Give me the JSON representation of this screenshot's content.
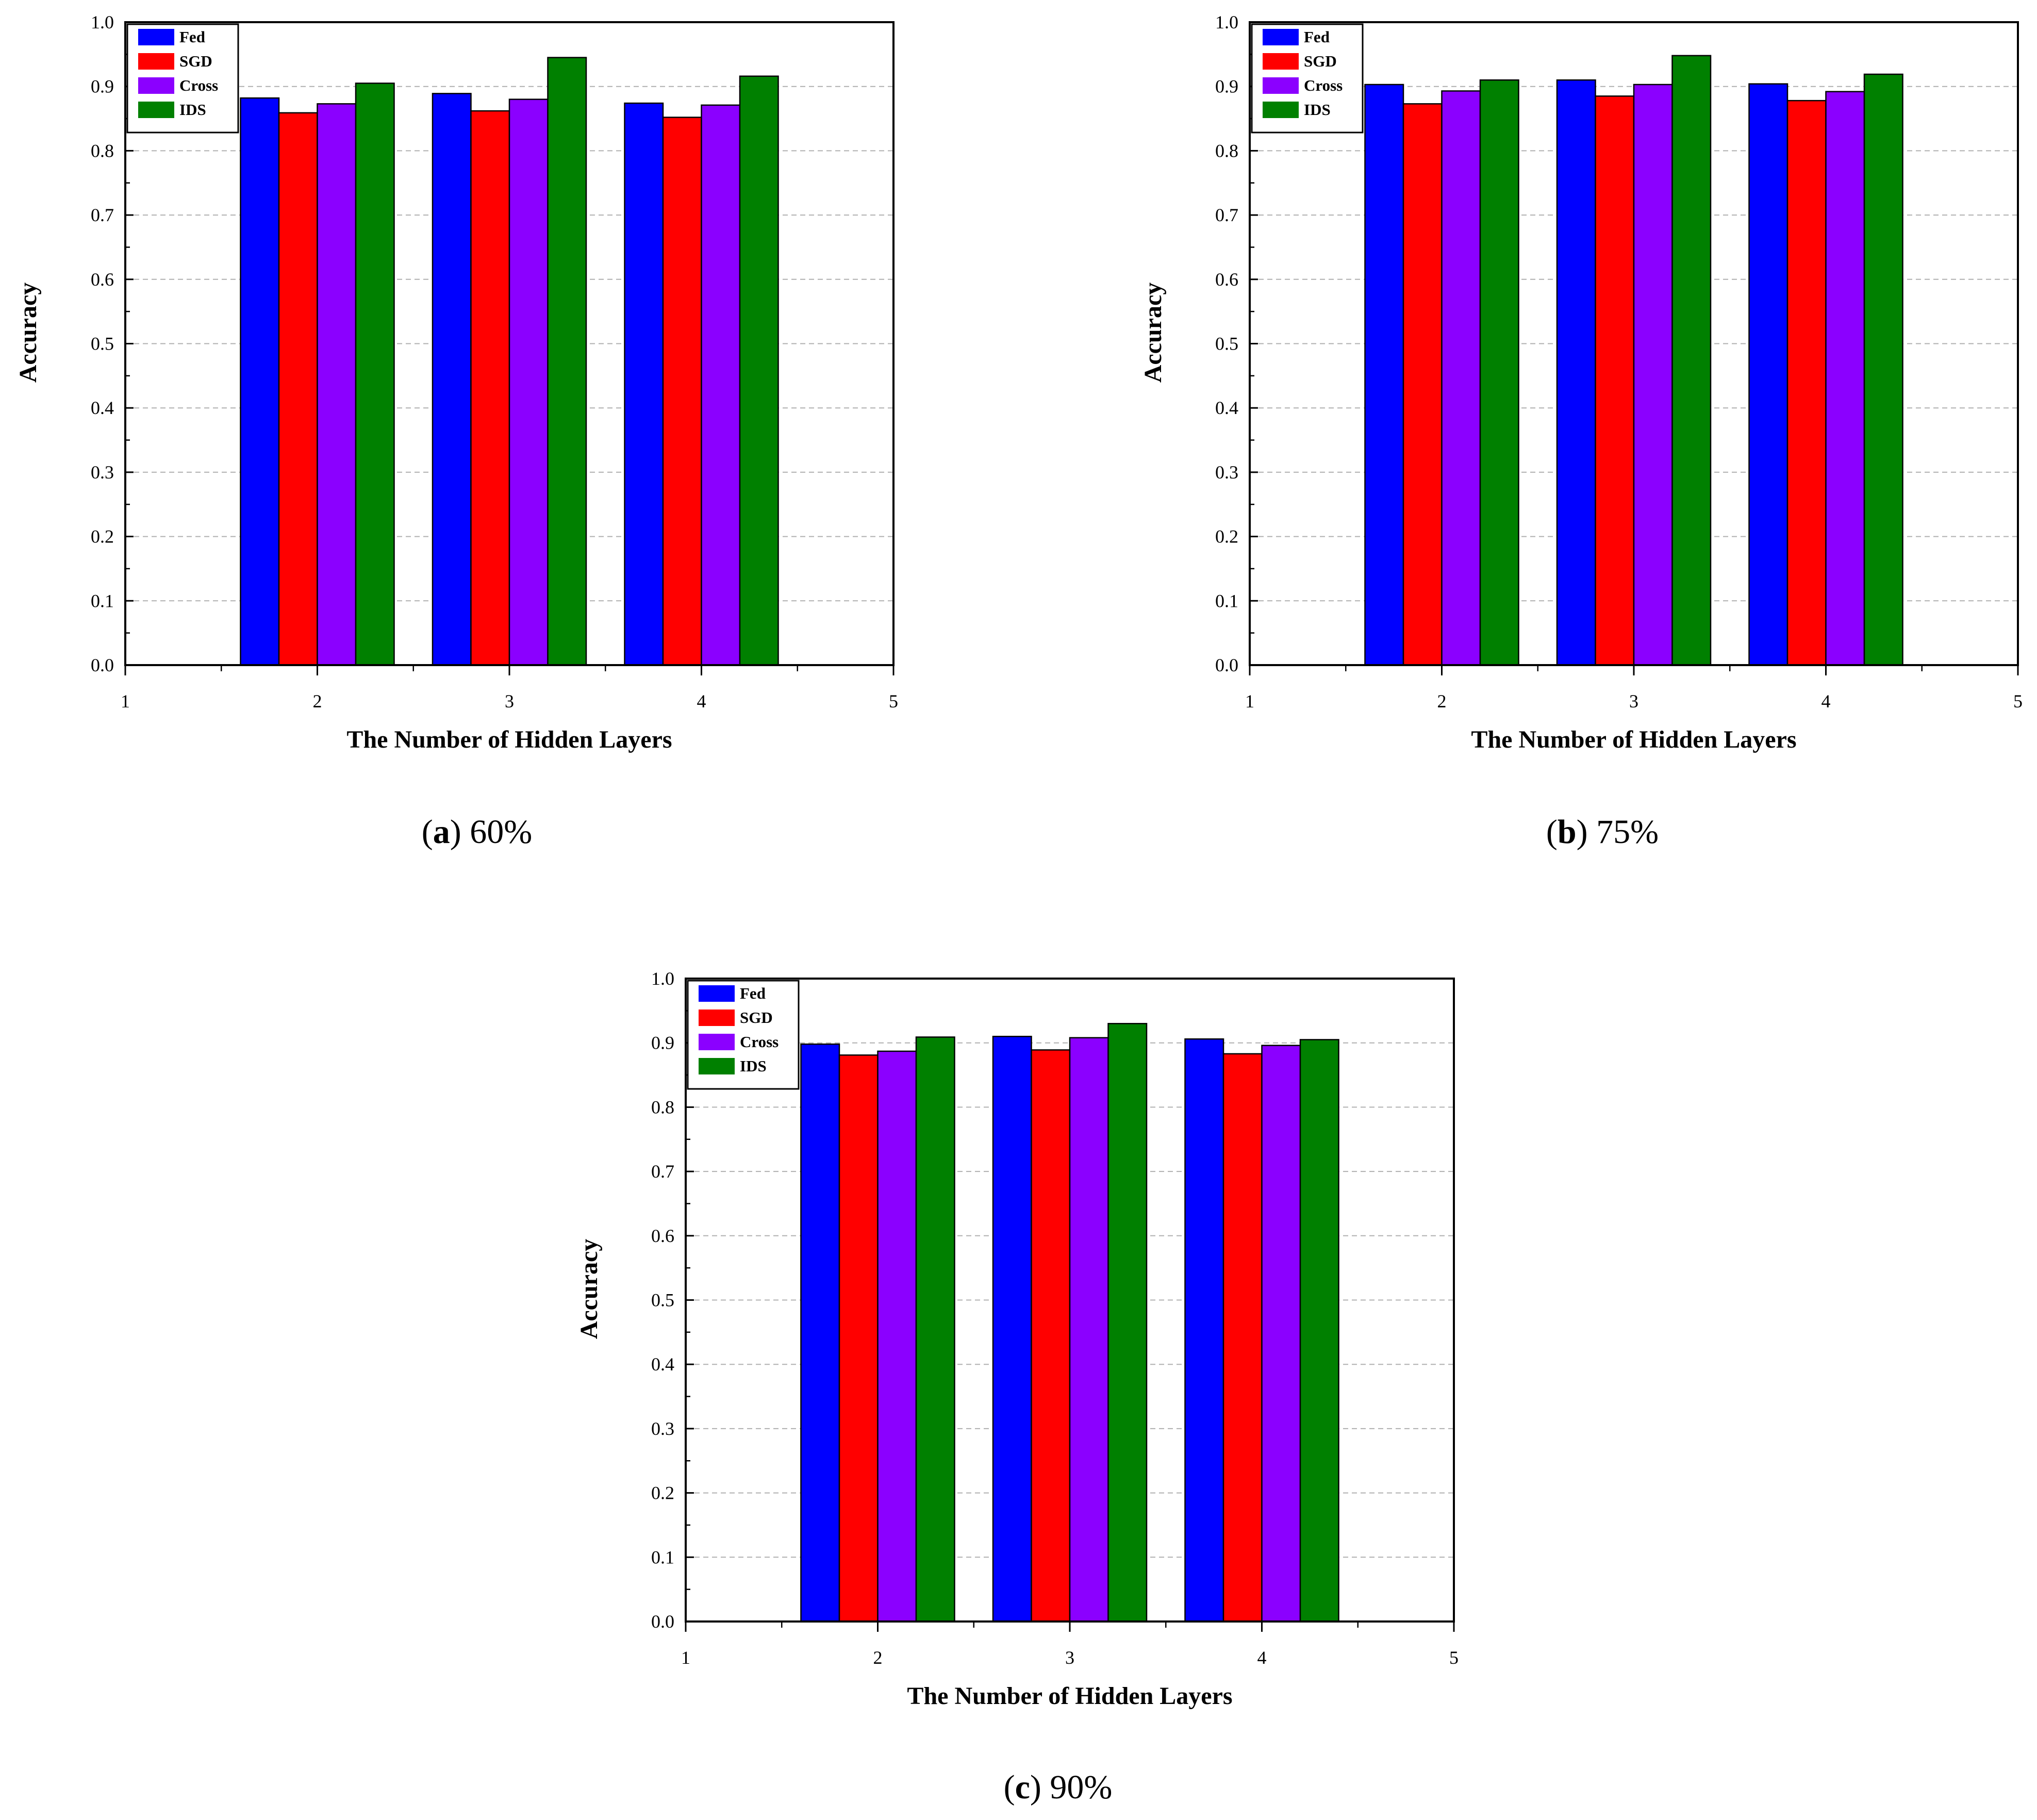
{
  "figure": {
    "background": "#ffffff"
  },
  "series_style": [
    {
      "name": "Fed",
      "color": "#0000ff"
    },
    {
      "name": "SGD",
      "color": "#ff0000"
    },
    {
      "name": "Cross",
      "color": "#8b00ff"
    },
    {
      "name": "IDS",
      "color": "#008000"
    }
  ],
  "chart_data": [
    {
      "type": "bar",
      "panel": "a",
      "caption_letter": "a",
      "caption_text": "60%",
      "categories": [
        "2",
        "3",
        "4"
      ],
      "x_tick_labels": [
        "1",
        "2",
        "3",
        "4",
        "5"
      ],
      "xlim": [
        1,
        5
      ],
      "ylim": [
        0.0,
        1.0
      ],
      "y_tick_labels": [
        "0.0",
        "0.1",
        "0.2",
        "0.3",
        "0.4",
        "0.5",
        "0.6",
        "0.7",
        "0.8",
        "0.9",
        "1.0"
      ],
      "xlabel": "The Number of Hidden Layers",
      "ylabel": "Accuracy",
      "grid": "horizontal dashed",
      "legend_position": "top-left",
      "series": [
        {
          "name": "Fed",
          "values": [
            0.882,
            0.889,
            0.874
          ]
        },
        {
          "name": "SGD",
          "values": [
            0.859,
            0.862,
            0.852
          ]
        },
        {
          "name": "Cross",
          "values": [
            0.873,
            0.88,
            0.871
          ]
        },
        {
          "name": "IDS",
          "values": [
            0.905,
            0.945,
            0.916
          ]
        }
      ]
    },
    {
      "type": "bar",
      "panel": "b",
      "caption_letter": "b",
      "caption_text": "75%",
      "categories": [
        "2",
        "3",
        "4"
      ],
      "x_tick_labels": [
        "1",
        "2",
        "3",
        "4",
        "5"
      ],
      "xlim": [
        1,
        5
      ],
      "ylim": [
        0.0,
        1.0
      ],
      "y_tick_labels": [
        "0.0",
        "0.1",
        "0.2",
        "0.3",
        "0.4",
        "0.5",
        "0.6",
        "0.7",
        "0.8",
        "0.9",
        "1.0"
      ],
      "xlabel": "The Number of Hidden Layers",
      "ylabel": "Accuracy",
      "grid": "horizontal dashed",
      "legend_position": "top-left",
      "series": [
        {
          "name": "Fed",
          "values": [
            0.903,
            0.91,
            0.904
          ]
        },
        {
          "name": "SGD",
          "values": [
            0.873,
            0.885,
            0.878
          ]
        },
        {
          "name": "Cross",
          "values": [
            0.893,
            0.903,
            0.892
          ]
        },
        {
          "name": "IDS",
          "values": [
            0.91,
            0.948,
            0.919
          ]
        }
      ]
    },
    {
      "type": "bar",
      "panel": "c",
      "caption_letter": "c",
      "caption_text": "90%",
      "categories": [
        "2",
        "3",
        "4"
      ],
      "x_tick_labels": [
        "1",
        "2",
        "3",
        "4",
        "5"
      ],
      "xlim": [
        1,
        5
      ],
      "ylim": [
        0.0,
        1.0
      ],
      "y_tick_labels": [
        "0.0",
        "0.1",
        "0.2",
        "0.3",
        "0.4",
        "0.5",
        "0.6",
        "0.7",
        "0.8",
        "0.9",
        "1.0"
      ],
      "xlabel": "The Number of Hidden Layers",
      "ylabel": "Accuracy",
      "grid": "horizontal dashed",
      "legend_position": "top-left",
      "series": [
        {
          "name": "Fed",
          "values": [
            0.898,
            0.91,
            0.906
          ]
        },
        {
          "name": "SGD",
          "values": [
            0.881,
            0.889,
            0.883
          ]
        },
        {
          "name": "Cross",
          "values": [
            0.887,
            0.908,
            0.896
          ]
        },
        {
          "name": "IDS",
          "values": [
            0.909,
            0.93,
            0.905
          ]
        }
      ]
    }
  ]
}
